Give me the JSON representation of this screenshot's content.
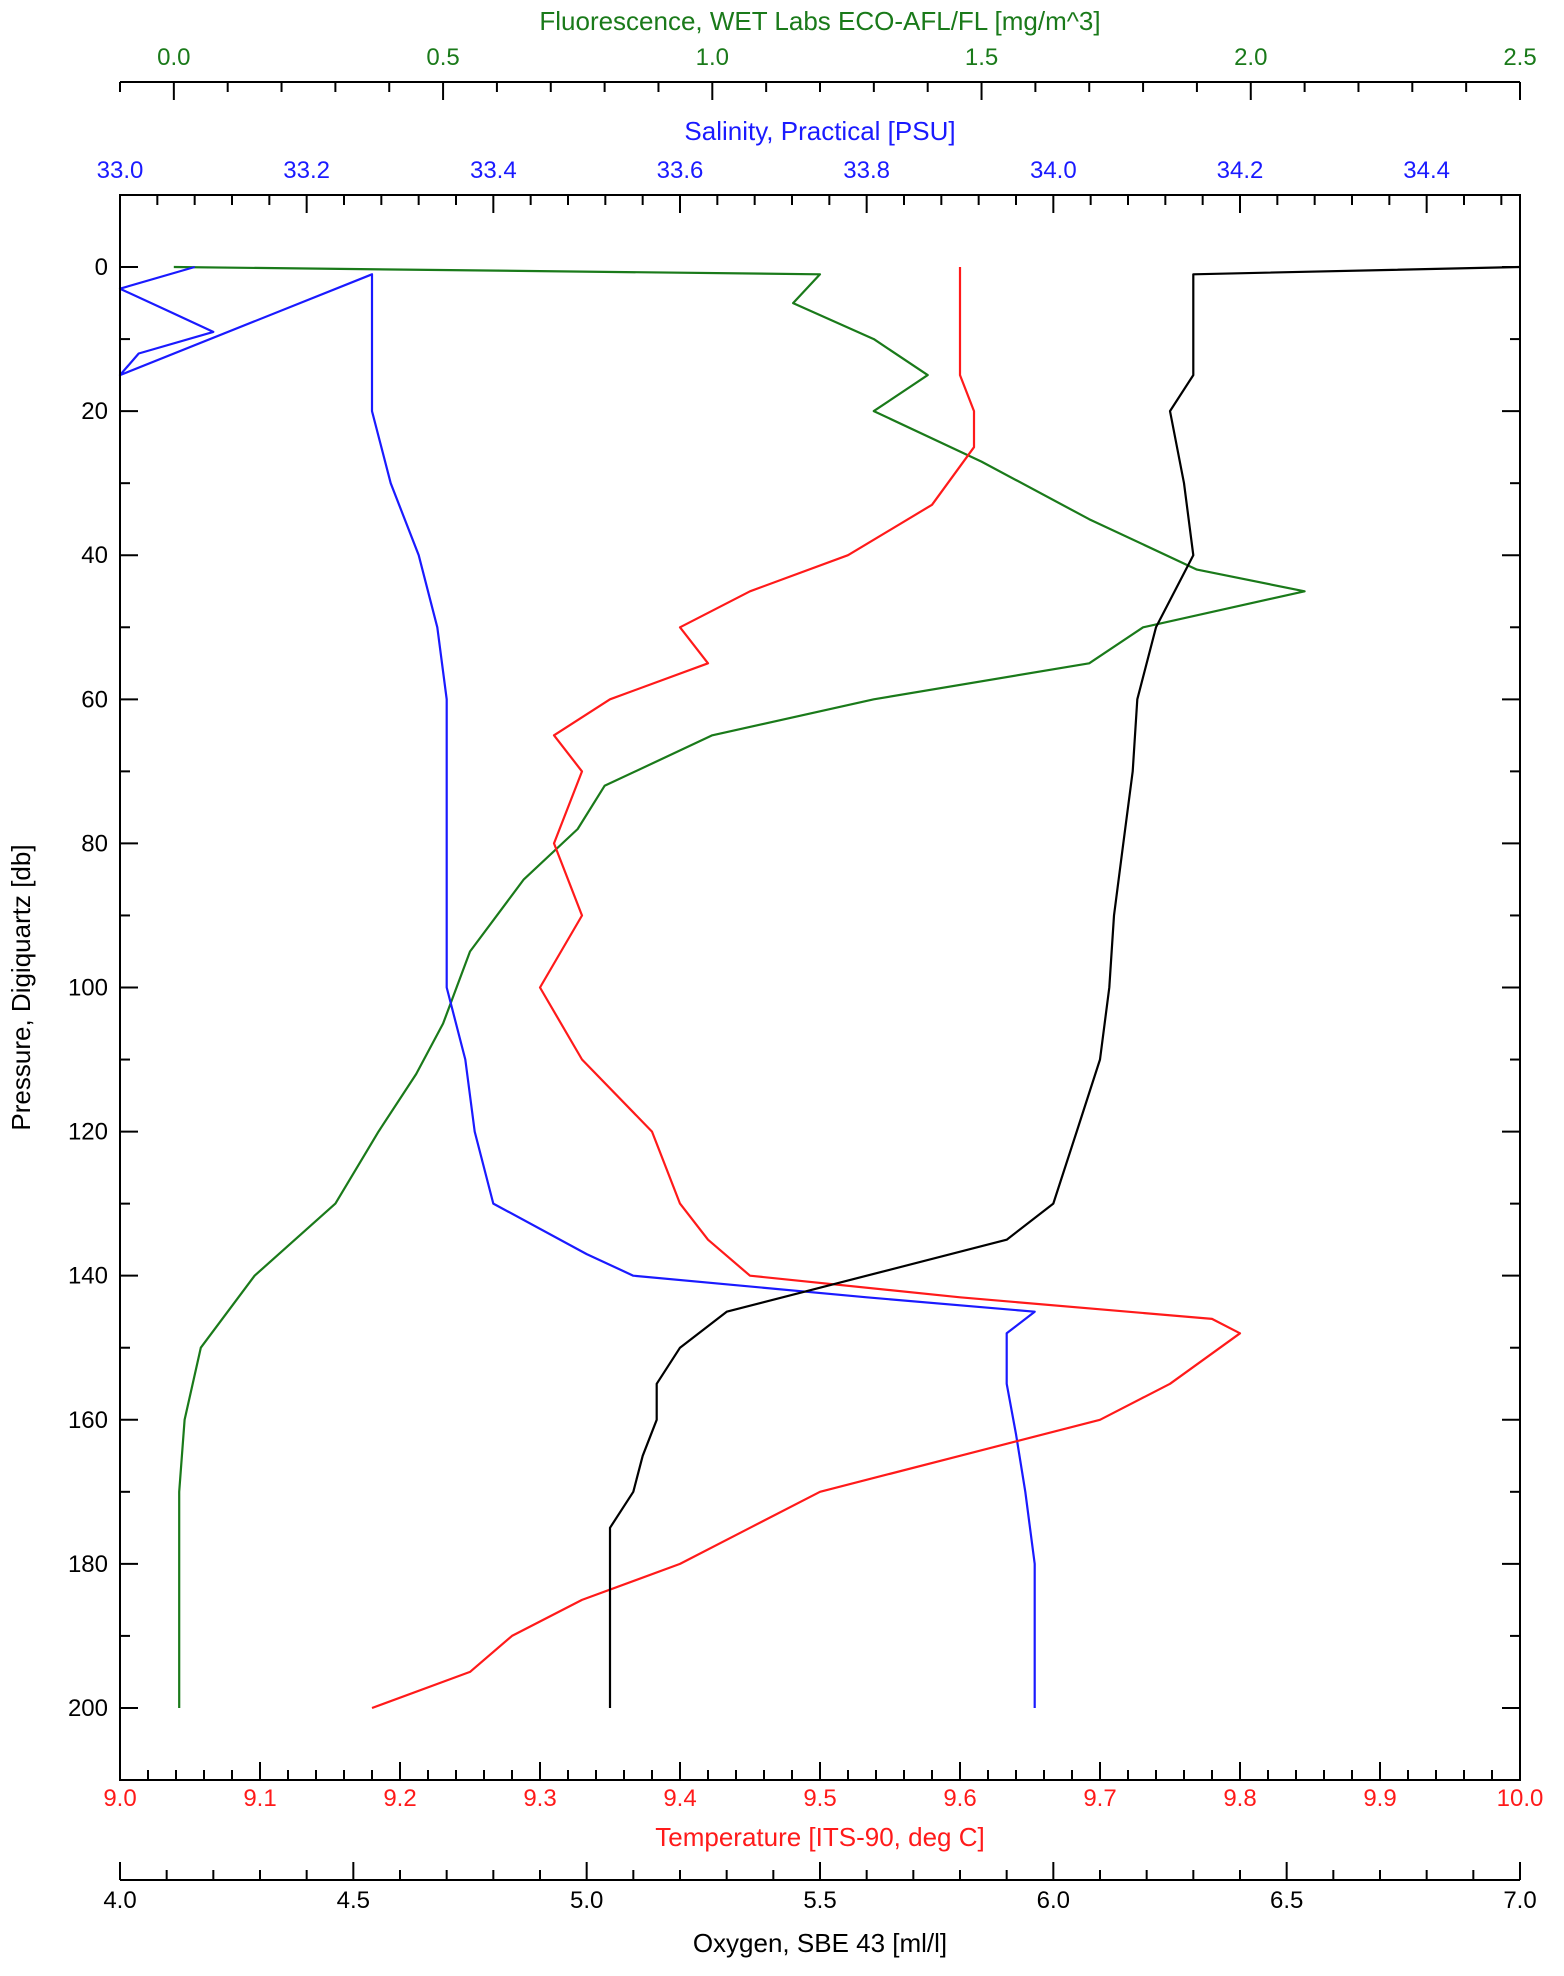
{
  "chart_data": {
    "type": "line",
    "title": "",
    "orientation": "profile, pressure increases downward",
    "y_axis": {
      "label": "Pressure, Digiquartz [db]",
      "range": [
        -10,
        210
      ],
      "ticks": [
        0,
        20,
        40,
        60,
        80,
        100,
        120,
        140,
        160,
        180,
        200
      ],
      "tick_labels": [
        "0",
        "20",
        "40",
        "60",
        "80",
        "100",
        "120",
        "140",
        "160",
        "180",
        "200"
      ],
      "inverted": true
    },
    "x_axes": [
      {
        "id": "fluorescence",
        "label": "Fluorescence, WET Labs ECO-AFL/FL [mg/m^3]",
        "position": "top-outer",
        "color": "#1a7a1a",
        "range": [
          -0.1,
          2.5
        ],
        "ticks": [
          0.0,
          0.5,
          1.0,
          1.5,
          2.0,
          2.5
        ],
        "tick_labels": [
          "0.0",
          "0.5",
          "1.0",
          "1.5",
          "2.0",
          "2.5"
        ]
      },
      {
        "id": "salinity",
        "label": "Salinity, Practical [PSU]",
        "position": "top-inner",
        "color": "#1a1aff",
        "range": [
          33.0,
          34.5
        ],
        "ticks": [
          33.0,
          33.2,
          33.4,
          33.6,
          33.8,
          34.0,
          34.2,
          34.4
        ],
        "tick_labels": [
          "33.0",
          "33.2",
          "33.4",
          "33.6",
          "33.8",
          "34.0",
          "34.2",
          "34.4"
        ]
      },
      {
        "id": "temperature",
        "label": "Temperature [ITS-90, deg C]",
        "position": "bottom-inner",
        "color": "#ff1a1a",
        "range": [
          9.0,
          10.0
        ],
        "ticks": [
          9.0,
          9.1,
          9.2,
          9.3,
          9.4,
          9.5,
          9.6,
          9.7,
          9.8,
          9.9,
          10.0
        ],
        "tick_labels": [
          "9.0",
          "9.1",
          "9.2",
          "9.3",
          "9.4",
          "9.5",
          "9.6",
          "9.7",
          "9.8",
          "9.9",
          "10.0"
        ]
      },
      {
        "id": "oxygen",
        "label": "Oxygen, SBE 43 [ml/l]",
        "position": "bottom-outer",
        "color": "#000000",
        "range": [
          4.0,
          7.0
        ],
        "ticks": [
          4.0,
          4.5,
          5.0,
          5.5,
          6.0,
          6.5,
          7.0
        ],
        "tick_labels": [
          "4.0",
          "4.5",
          "5.0",
          "5.5",
          "6.0",
          "6.5",
          "7.0"
        ]
      }
    ],
    "series": [
      {
        "axis": "fluorescence",
        "color": "#1a7a1a",
        "points": [
          [
            0.0,
            0
          ],
          [
            1.2,
            1
          ],
          [
            1.15,
            5
          ],
          [
            1.3,
            10
          ],
          [
            1.4,
            15
          ],
          [
            1.3,
            20
          ],
          [
            1.5,
            27
          ],
          [
            1.7,
            35
          ],
          [
            1.9,
            42
          ],
          [
            2.1,
            45
          ],
          [
            1.8,
            50
          ],
          [
            1.7,
            55
          ],
          [
            1.3,
            60
          ],
          [
            1.0,
            65
          ],
          [
            0.8,
            72
          ],
          [
            0.75,
            78
          ],
          [
            0.65,
            85
          ],
          [
            0.55,
            95
          ],
          [
            0.5,
            105
          ],
          [
            0.45,
            112
          ],
          [
            0.38,
            120
          ],
          [
            0.3,
            130
          ],
          [
            0.15,
            140
          ],
          [
            0.05,
            150
          ],
          [
            0.02,
            160
          ],
          [
            0.01,
            170
          ],
          [
            0.01,
            180
          ],
          [
            0.01,
            190
          ],
          [
            0.01,
            200
          ]
        ]
      },
      {
        "axis": "salinity",
        "color": "#1a1aff",
        "points": [
          [
            33.08,
            0
          ],
          [
            33.0,
            3
          ],
          [
            33.05,
            6
          ],
          [
            33.1,
            9
          ],
          [
            33.02,
            12
          ],
          [
            33.0,
            15
          ],
          [
            33.27,
            1
          ],
          [
            33.27,
            10
          ],
          [
            33.27,
            20
          ],
          [
            33.29,
            30
          ],
          [
            33.32,
            40
          ],
          [
            33.34,
            50
          ],
          [
            33.35,
            60
          ],
          [
            33.35,
            70
          ],
          [
            33.35,
            80
          ],
          [
            33.35,
            90
          ],
          [
            33.35,
            100
          ],
          [
            33.37,
            110
          ],
          [
            33.38,
            120
          ],
          [
            33.4,
            130
          ],
          [
            33.5,
            137
          ],
          [
            33.55,
            140
          ],
          [
            33.8,
            143
          ],
          [
            33.98,
            145
          ],
          [
            33.95,
            148
          ],
          [
            33.95,
            155
          ],
          [
            33.96,
            162
          ],
          [
            33.97,
            170
          ],
          [
            33.98,
            180
          ],
          [
            33.98,
            190
          ],
          [
            33.98,
            200
          ]
        ]
      },
      {
        "axis": "temperature",
        "color": "#ff1a1a",
        "points": [
          [
            9.6,
            0
          ],
          [
            9.6,
            5
          ],
          [
            9.6,
            10
          ],
          [
            9.6,
            15
          ],
          [
            9.61,
            20
          ],
          [
            9.61,
            25
          ],
          [
            9.58,
            33
          ],
          [
            9.52,
            40
          ],
          [
            9.45,
            45
          ],
          [
            9.4,
            50
          ],
          [
            9.42,
            55
          ],
          [
            9.35,
            60
          ],
          [
            9.31,
            65
          ],
          [
            9.33,
            70
          ],
          [
            9.31,
            80
          ],
          [
            9.33,
            90
          ],
          [
            9.3,
            100
          ],
          [
            9.33,
            110
          ],
          [
            9.38,
            120
          ],
          [
            9.4,
            130
          ],
          [
            9.42,
            135
          ],
          [
            9.45,
            140
          ],
          [
            9.6,
            143
          ],
          [
            9.78,
            146
          ],
          [
            9.8,
            148
          ],
          [
            9.75,
            155
          ],
          [
            9.7,
            160
          ],
          [
            9.6,
            165
          ],
          [
            9.5,
            170
          ],
          [
            9.45,
            175
          ],
          [
            9.4,
            180
          ],
          [
            9.33,
            185
          ],
          [
            9.28,
            190
          ],
          [
            9.25,
            195
          ],
          [
            9.18,
            200
          ]
        ]
      },
      {
        "axis": "oxygen",
        "color": "#000000",
        "points": [
          [
            7.0,
            0
          ],
          [
            6.3,
            1
          ],
          [
            6.3,
            5
          ],
          [
            6.3,
            10
          ],
          [
            6.3,
            15
          ],
          [
            6.25,
            20
          ],
          [
            6.28,
            30
          ],
          [
            6.3,
            40
          ],
          [
            6.22,
            50
          ],
          [
            6.18,
            60
          ],
          [
            6.17,
            70
          ],
          [
            6.15,
            80
          ],
          [
            6.13,
            90
          ],
          [
            6.12,
            100
          ],
          [
            6.1,
            110
          ],
          [
            6.05,
            120
          ],
          [
            6.0,
            130
          ],
          [
            5.9,
            135
          ],
          [
            5.6,
            140
          ],
          [
            5.3,
            145
          ],
          [
            5.2,
            150
          ],
          [
            5.15,
            155
          ],
          [
            5.15,
            160
          ],
          [
            5.12,
            165
          ],
          [
            5.1,
            170
          ],
          [
            5.05,
            175
          ],
          [
            5.05,
            180
          ],
          [
            5.05,
            185
          ],
          [
            5.05,
            190
          ],
          [
            5.05,
            195
          ],
          [
            5.05,
            200
          ]
        ]
      }
    ],
    "grid": false,
    "legend": "none"
  }
}
